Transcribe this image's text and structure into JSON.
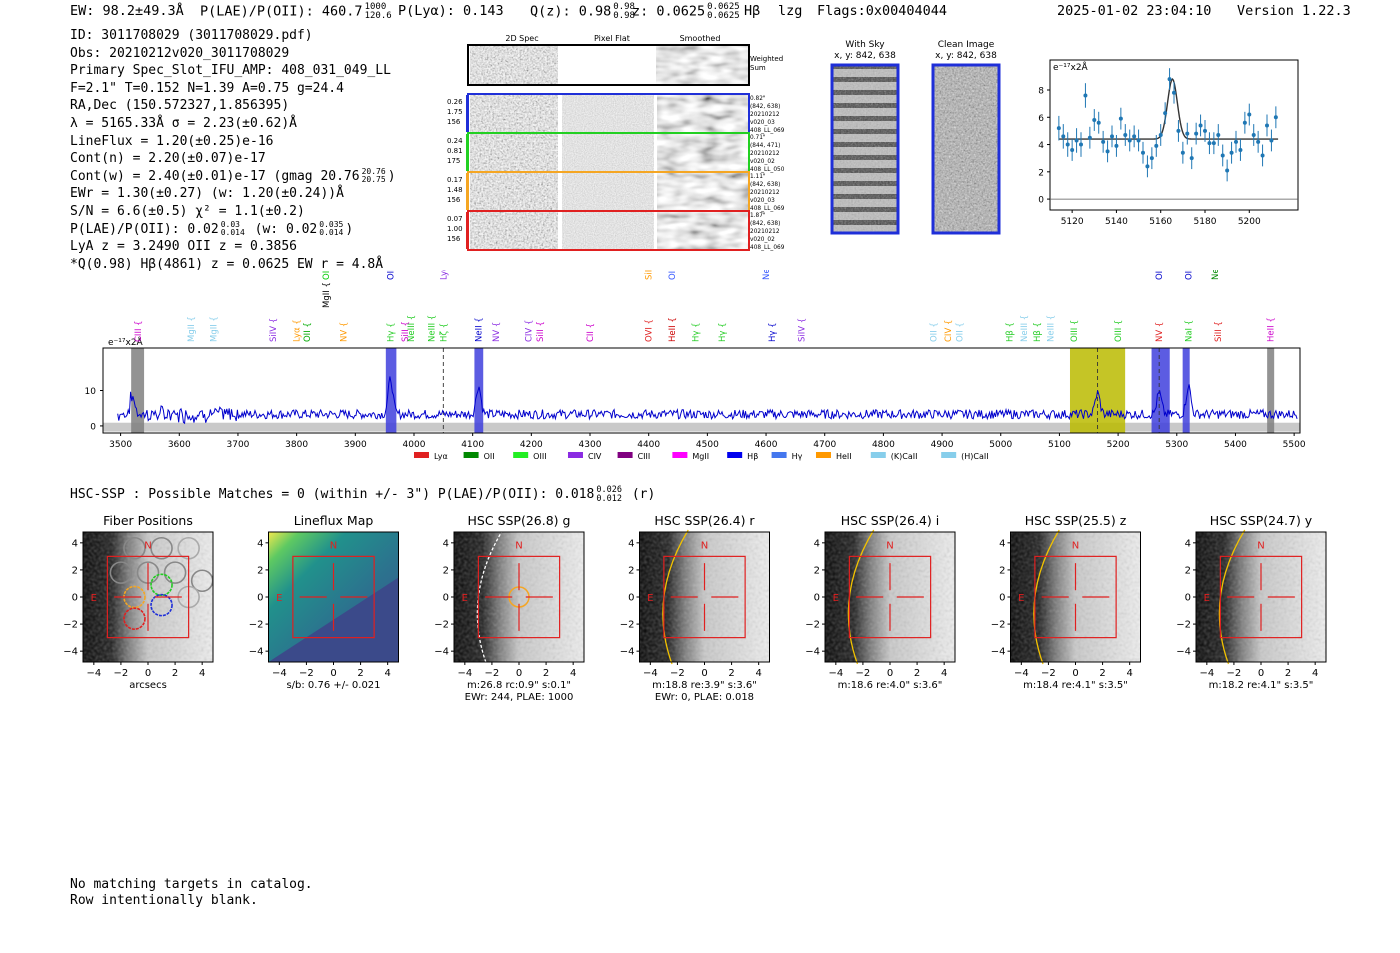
{
  "header": {
    "ew": "EW: 98.2±49.3Å",
    "plae_label": "P(LAE)/P(OII): 460.7",
    "plae_hi": "1000",
    "plae_lo": "120.6",
    "plya": "P(Lyα): 0.143",
    "qz_label": "Q(z): 0.98",
    "qz_hi": "0.98",
    "qz_lo": "0.98",
    "z_label": "z: 0.0625",
    "z_hi": "0.0625",
    "z_lo": "0.0625",
    "line_name": "Hβ",
    "lzg": "lzg",
    "flags": "Flags:0x00404044",
    "datetime": "2025-01-02 23:04:10",
    "version": "Version 1.22.3"
  },
  "info": {
    "id": "ID: 3011708029 (3011708029.pdf)",
    "obs": "Obs: 20210212v020_3011708029",
    "primary": "Primary Spec_Slot_IFU_AMP: 408_031_049_LL",
    "fit": "F=2.1\"  T=0.152  N=1.39  A=0.75  g=24.4",
    "radec": "RA,Dec (150.572327,1.856395)",
    "lambda": "λ = 5165.33Å  σ = 2.23(±0.62)Å",
    "lineflux": "LineFlux = 1.20(±0.25)e-16",
    "contn": "Cont(n) = 2.20(±0.07)e-17",
    "contw_prefix": "Cont(w) = 2.40(±0.01)e-17 (gmag 20.76",
    "contw_hi": "20.76",
    "contw_lo": "20.75",
    "contw_suffix": ")",
    "ewr": "EWr = 1.30(±0.27) (w: 1.20(±0.24))Å",
    "sn": "S/N = 6.6(±0.5)  χ² = 1.1(±0.2)",
    "plae_prefix": "P(LAE)/P(OII): 0.02",
    "plae_a_hi": "0.03",
    "plae_a_lo": "0.014",
    "plae_mid": "(w: 0.02",
    "plae_b_hi": "0.035",
    "plae_b_lo": "0.014",
    "plae_suffix": ")",
    "lya": "LyA z = 3.2490  OII z = 0.3856",
    "best": "*Q(0.98) Hβ(4861) z = 0.0625  EW r = 4.8Å"
  },
  "cutouts": {
    "col_2d": "2D Spec",
    "col_flat": "Pixel Flat",
    "col_smooth": "Smoothed",
    "weighted_1": "Weighted",
    "weighted_2": "Sum",
    "rows": [
      {
        "a": "0.26",
        "b": "1.75",
        "c": "156",
        "r1": "0.82\"",
        "r2": "(842, 638)",
        "r3": "20210212",
        "r4": "v020_03",
        "r5": "408_LL_069",
        "color": "#1f2fd8"
      },
      {
        "a": "0.24",
        "b": "0.81",
        "c": "175",
        "r1": "0.71\"",
        "r2": "(844, 471)",
        "r3": "20210212",
        "r4": "v020_02",
        "r5": "408_LL_050",
        "color": "#22d022"
      },
      {
        "a": "0.17",
        "b": "1.48",
        "c": "156",
        "r1": "1.11\"",
        "r2": "(842, 638)",
        "r3": "20210212",
        "r4": "v020_03",
        "r5": "408_LL_069",
        "color": "#f5a623"
      },
      {
        "a": "0.07",
        "b": "1.00",
        "c": "156",
        "r1": "1.87\"",
        "r2": "(842, 638)",
        "r3": "20210212",
        "r4": "v020_02",
        "r5": "408_LL_069",
        "color": "#e02020"
      }
    ],
    "sky_title": "With Sky",
    "sky_xy": "x, y: 842, 638",
    "clean_title": "Clean Image",
    "clean_xy": "x, y: 842, 638"
  },
  "chart_data": [
    {
      "type": "scatter",
      "title": "zoom-spectrum",
      "ylabel": "e⁻¹⁷x2Å",
      "xlim": [
        5110,
        5222
      ],
      "ylim": [
        -0.8,
        10.2
      ],
      "xticks": [
        "5120",
        "5140",
        "5160",
        "5180",
        "5200"
      ],
      "yticks": [
        "0",
        "2",
        "4",
        "6",
        "8"
      ],
      "x": [
        5114,
        5116,
        5118,
        5120,
        5122,
        5124,
        5126,
        5128,
        5130,
        5132,
        5134,
        5136,
        5138,
        5140,
        5142,
        5144,
        5146,
        5148,
        5150,
        5152,
        5154,
        5156,
        5158,
        5160,
        5162,
        5164,
        5166,
        5168,
        5170,
        5172,
        5174,
        5176,
        5178,
        5180,
        5182,
        5184,
        5186,
        5188,
        5190,
        5192,
        5194,
        5196,
        5198,
        5200,
        5202,
        5204,
        5206,
        5208,
        5210,
        5212
      ],
      "y": [
        5.2,
        4.6,
        4.0,
        3.6,
        4.3,
        4.0,
        7.6,
        4.5,
        5.8,
        5.6,
        4.2,
        3.5,
        4.6,
        3.9,
        5.9,
        4.7,
        4.3,
        4.6,
        4.3,
        3.4,
        2.4,
        3.0,
        3.9,
        4.7,
        6.3,
        8.8,
        7.8,
        5.0,
        3.4,
        4.8,
        3.0,
        4.8,
        5.4,
        5.0,
        4.1,
        4.1,
        4.7,
        3.2,
        2.1,
        3.4,
        4.2,
        3.6,
        5.6,
        6.2,
        4.7,
        4.2,
        3.2,
        5.4,
        4.3,
        6.0
      ],
      "err": [
        0.9,
        0.9,
        0.9,
        0.8,
        0.9,
        0.9,
        0.9,
        0.8,
        0.8,
        0.8,
        0.8,
        0.8,
        0.8,
        0.8,
        0.8,
        0.8,
        0.8,
        0.8,
        0.8,
        0.8,
        0.8,
        0.8,
        0.8,
        0.8,
        0.8,
        0.8,
        0.8,
        0.8,
        0.8,
        0.8,
        0.8,
        0.8,
        0.8,
        0.8,
        0.8,
        0.8,
        0.8,
        0.8,
        0.8,
        0.8,
        0.8,
        0.8,
        0.8,
        0.8,
        0.8,
        0.8,
        0.8,
        0.8,
        0.8,
        0.8
      ],
      "model": {
        "continuum": 4.4,
        "center": 5165.3,
        "sigma": 2.23,
        "peak": 8.8
      }
    },
    {
      "type": "line",
      "title": "full-spectrum",
      "ylabel": "e⁻¹⁷x2Å",
      "xlim": [
        3470,
        5510
      ],
      "ylim": [
        -2,
        22
      ],
      "xticks": [
        "3500",
        "3600",
        "3700",
        "3800",
        "3900",
        "4000",
        "4100",
        "4200",
        "4300",
        "4400",
        "4500",
        "4600",
        "4700",
        "4800",
        "4900",
        "5000",
        "5100",
        "5200",
        "5300",
        "5400",
        "5500"
      ],
      "yticks": [
        "0",
        "10"
      ],
      "series": [
        {
          "name": "flux",
          "color": "#0000cc",
          "baseline": 3.3,
          "noise": 1.3,
          "peaks": [
            [
              3520,
              5
            ],
            [
              3960,
              10
            ],
            [
              4110,
              8
            ],
            [
              5165,
              6
            ],
            [
              5270,
              6
            ],
            [
              5320,
              8
            ]
          ]
        }
      ],
      "shaded_regions": [
        {
          "x0": 3518,
          "x1": 3540,
          "color": "#808080"
        },
        {
          "x0": 3952,
          "x1": 3970,
          "color": "#4040dd"
        },
        {
          "x0": 4103,
          "x1": 4118,
          "color": "#4040dd"
        },
        {
          "x0": 5118,
          "x1": 5212,
          "color": "#bbbb00"
        },
        {
          "x0": 5257,
          "x1": 5288,
          "color": "#4040dd"
        },
        {
          "x0": 5310,
          "x1": 5322,
          "color": "#4040dd"
        },
        {
          "x0": 5454,
          "x1": 5466,
          "color": "#808080"
        }
      ],
      "dashed_lines": [
        4050,
        5165,
        5270
      ],
      "lines": [
        {
          "name": "CIII",
          "x": 3530,
          "color": "#cc00cc",
          "tier": 0
        },
        {
          "name": "MgII",
          "x": 3620,
          "color": "#87ceeb",
          "tier": 0
        },
        {
          "name": "MgII",
          "x": 3658,
          "color": "#87ceeb",
          "tier": 0
        },
        {
          "name": "SiIV",
          "x": 3760,
          "color": "#8a2be2",
          "tier": 0
        },
        {
          "name": "Lyα",
          "x": 3800,
          "color": "#ff9900",
          "tier": 0
        },
        {
          "name": "OII",
          "x": 3818,
          "color": "#00aa00",
          "tier": 0
        },
        {
          "name": "MgII",
          "x": 3850,
          "color": "#000000",
          "tier": 1
        },
        {
          "name": "NV",
          "x": 3880,
          "color": "#ff9900",
          "tier": 0
        },
        {
          "name": "OII",
          "x": 3850,
          "color": "#00cc00",
          "tier": 2
        },
        {
          "name": "Hγ",
          "x": 3960,
          "color": "#22cc22",
          "tier": 0
        },
        {
          "name": "OII",
          "x": 3960,
          "color": "#0000cc",
          "tier": 2
        },
        {
          "name": "SiII",
          "x": 3985,
          "color": "#cc00cc",
          "tier": 0
        },
        {
          "name": "NeIII",
          "x": 3995,
          "color": "#22cc22",
          "tier": 0
        },
        {
          "name": "NeIII",
          "x": 4030,
          "color": "#22cc22",
          "tier": 0
        },
        {
          "name": "Hζ",
          "x": 4050,
          "color": "#22cc22",
          "tier": 0
        },
        {
          "name": "Lyα",
          "x": 4050,
          "color": "#8a2be2",
          "tier": 2
        },
        {
          "name": "NeII",
          "x": 4110,
          "color": "#0000cc",
          "tier": 0
        },
        {
          "name": "NV",
          "x": 4140,
          "color": "#8a2be2",
          "tier": 0
        },
        {
          "name": "CIV",
          "x": 4195,
          "color": "#8a2be2",
          "tier": 0
        },
        {
          "name": "SiII",
          "x": 4215,
          "color": "#cc00cc",
          "tier": 0
        },
        {
          "name": "CII",
          "x": 4300,
          "color": "#cc00cc",
          "tier": 0
        },
        {
          "name": "OVI",
          "x": 4400,
          "color": "#e02020",
          "tier": 0
        },
        {
          "name": "SiIV",
          "x": 4400,
          "color": "#ff9900",
          "tier": 2
        },
        {
          "name": "HeII",
          "x": 4440,
          "color": "#cc0000",
          "tier": 0
        },
        {
          "name": "OII",
          "x": 4440,
          "color": "#3355ff",
          "tier": 2
        },
        {
          "name": "Hγ",
          "x": 4480,
          "color": "#22cc22",
          "tier": 0
        },
        {
          "name": "Hγ",
          "x": 4525,
          "color": "#22cc22",
          "tier": 0
        },
        {
          "name": "NeII",
          "x": 4600,
          "color": "#3355ff",
          "tier": 2
        },
        {
          "name": "Hγ",
          "x": 4610,
          "color": "#0000cc",
          "tier": 0
        },
        {
          "name": "SiIV",
          "x": 4660,
          "color": "#8a2be2",
          "tier": 0
        },
        {
          "name": "OII",
          "x": 4885,
          "color": "#87ceeb",
          "tier": 0
        },
        {
          "name": "CIV",
          "x": 4910,
          "color": "#ff9900",
          "tier": 0
        },
        {
          "name": "OII",
          "x": 4930,
          "color": "#87ceeb",
          "tier": 0
        },
        {
          "name": "Hβ",
          "x": 5015,
          "color": "#22cc22",
          "tier": 0
        },
        {
          "name": "NeIII",
          "x": 5040,
          "color": "#87ceeb",
          "tier": 0
        },
        {
          "name": "Hβ",
          "x": 5062,
          "color": "#22cc22",
          "tier": 0
        },
        {
          "name": "NeIII",
          "x": 5085,
          "color": "#87ceeb",
          "tier": 0
        },
        {
          "name": "OIII",
          "x": 5125,
          "color": "#22cc22",
          "tier": 0
        },
        {
          "name": "OIII",
          "x": 5200,
          "color": "#22cc22",
          "tier": 0
        },
        {
          "name": "NV",
          "x": 5270,
          "color": "#e02020",
          "tier": 0
        },
        {
          "name": "OIII",
          "x": 5270,
          "color": "#0000cc",
          "tier": 2
        },
        {
          "name": "NaI",
          "x": 5320,
          "color": "#22cc22",
          "tier": 0
        },
        {
          "name": "OIII",
          "x": 5320,
          "color": "#0000cc",
          "tier": 2
        },
        {
          "name": "NeIII",
          "x": 5365,
          "color": "#008800",
          "tier": 2
        },
        {
          "name": "SiII",
          "x": 5370,
          "color": "#e02020",
          "tier": 0
        },
        {
          "name": "HeII",
          "x": 5460,
          "color": "#cc00cc",
          "tier": 0
        }
      ],
      "legend": [
        {
          "label": "Lyα",
          "color": "#e02020"
        },
        {
          "label": "OII",
          "color": "#008800"
        },
        {
          "label": "OIII",
          "color": "#22ee22"
        },
        {
          "label": "CIV",
          "color": "#8a2be2"
        },
        {
          "label": "CIII",
          "color": "#800080"
        },
        {
          "label": "MgII",
          "color": "#ff00ff"
        },
        {
          "label": "Hβ",
          "color": "#0000ee"
        },
        {
          "label": "Hγ",
          "color": "#4477ee"
        },
        {
          "label": "HeII",
          "color": "#ff9900"
        },
        {
          "label": "(K)CaII",
          "color": "#87ceeb"
        },
        {
          "label": "(H)CaII",
          "color": "#87ceeb"
        }
      ]
    }
  ],
  "hsc": {
    "line_prefix": "HSC-SSP : Possible Matches = 0 (within +/- 3\")  P(LAE)/P(OII): 0.018",
    "line_hi": "0.026",
    "line_lo": "0.012",
    "line_suffix": "(r)",
    "axis_ticks": [
      "−4",
      "−2",
      "0",
      "2",
      "4"
    ],
    "north": "N",
    "east": "E",
    "panels": [
      {
        "title": "Fiber Positions",
        "cap1": "arcsecs",
        "cap2": "",
        "kind": "fiber"
      },
      {
        "title": "Lineflux Map",
        "cap1": "s/b: 0.76 +/- 0.021",
        "cap2": "",
        "kind": "flux"
      },
      {
        "title": "HSC SSP(26.8) g",
        "cap1": "m:26.8 rc:0.9\"  s:0.1\"",
        "cap2": "EWr: 244, PLAE: 1000",
        "kind": "img",
        "ellipse": "white"
      },
      {
        "title": "HSC SSP(26.4) r",
        "cap1": "m:18.8  re:3.9\"  s:3.6\"",
        "cap2": "EWr: 0, PLAE: 0.018",
        "kind": "img",
        "ellipse": "gold"
      },
      {
        "title": "HSC SSP(26.4) i",
        "cap1": "m:18.6  re:4.0\"  s:3.6\"",
        "cap2": "",
        "kind": "img",
        "ellipse": "gold"
      },
      {
        "title": "HSC SSP(25.5) z",
        "cap1": "m:18.4  re:4.1\"  s:3.5\"",
        "cap2": "",
        "kind": "img",
        "ellipse": "gold"
      },
      {
        "title": "HSC SSP(24.7) y",
        "cap1": "m:18.2  re:4.1\"  s:3.5\"",
        "cap2": "",
        "kind": "img",
        "ellipse": "gold"
      }
    ]
  },
  "footer": {
    "line1": "No matching targets in catalog.",
    "line2": "Row intentionally blank."
  }
}
